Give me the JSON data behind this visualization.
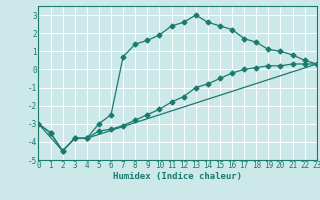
{
  "xlabel": "Humidex (Indice chaleur)",
  "xlim": [
    0,
    23
  ],
  "ylim": [
    -5,
    3.5
  ],
  "yticks": [
    -5,
    -4,
    -3,
    -2,
    -1,
    0,
    1,
    2,
    3
  ],
  "xticks": [
    0,
    1,
    2,
    3,
    4,
    5,
    6,
    7,
    8,
    9,
    10,
    11,
    12,
    13,
    14,
    15,
    16,
    17,
    18,
    19,
    20,
    21,
    22,
    23
  ],
  "bg_color": "#cce8e8",
  "line_color": "#1a7a6e",
  "grid_color": "#ffffff",
  "line1_x": [
    0,
    1,
    2,
    3,
    4,
    5,
    6,
    7,
    8,
    9,
    10,
    11,
    12,
    13,
    14,
    15,
    16,
    17,
    18,
    19,
    20,
    21,
    22,
    23
  ],
  "line1_y": [
    -3.0,
    -3.5,
    -4.5,
    -3.8,
    -3.8,
    -3.0,
    -2.5,
    0.7,
    1.4,
    1.6,
    1.9,
    2.4,
    2.6,
    3.0,
    2.6,
    2.4,
    2.2,
    1.7,
    1.5,
    1.1,
    1.0,
    0.8,
    0.5,
    0.3
  ],
  "line2_x": [
    0,
    1,
    2,
    3,
    4,
    5,
    6,
    7,
    8,
    9,
    10,
    11,
    12,
    13,
    14,
    15,
    16,
    17,
    18,
    19,
    20,
    21,
    22,
    23
  ],
  "line2_y": [
    -3.0,
    -3.5,
    -4.5,
    -3.8,
    -3.8,
    -3.4,
    -3.3,
    -3.1,
    -2.8,
    -2.5,
    -2.2,
    -1.8,
    -1.5,
    -1.0,
    -0.8,
    -0.5,
    -0.2,
    0.0,
    0.1,
    0.2,
    0.2,
    0.3,
    0.3,
    0.3
  ],
  "line3_x": [
    0,
    2,
    3,
    4,
    23
  ],
  "line3_y": [
    -3.0,
    -4.5,
    -3.8,
    -3.8,
    0.3
  ],
  "tick_fontsize": 5.5,
  "xlabel_fontsize": 6.5
}
